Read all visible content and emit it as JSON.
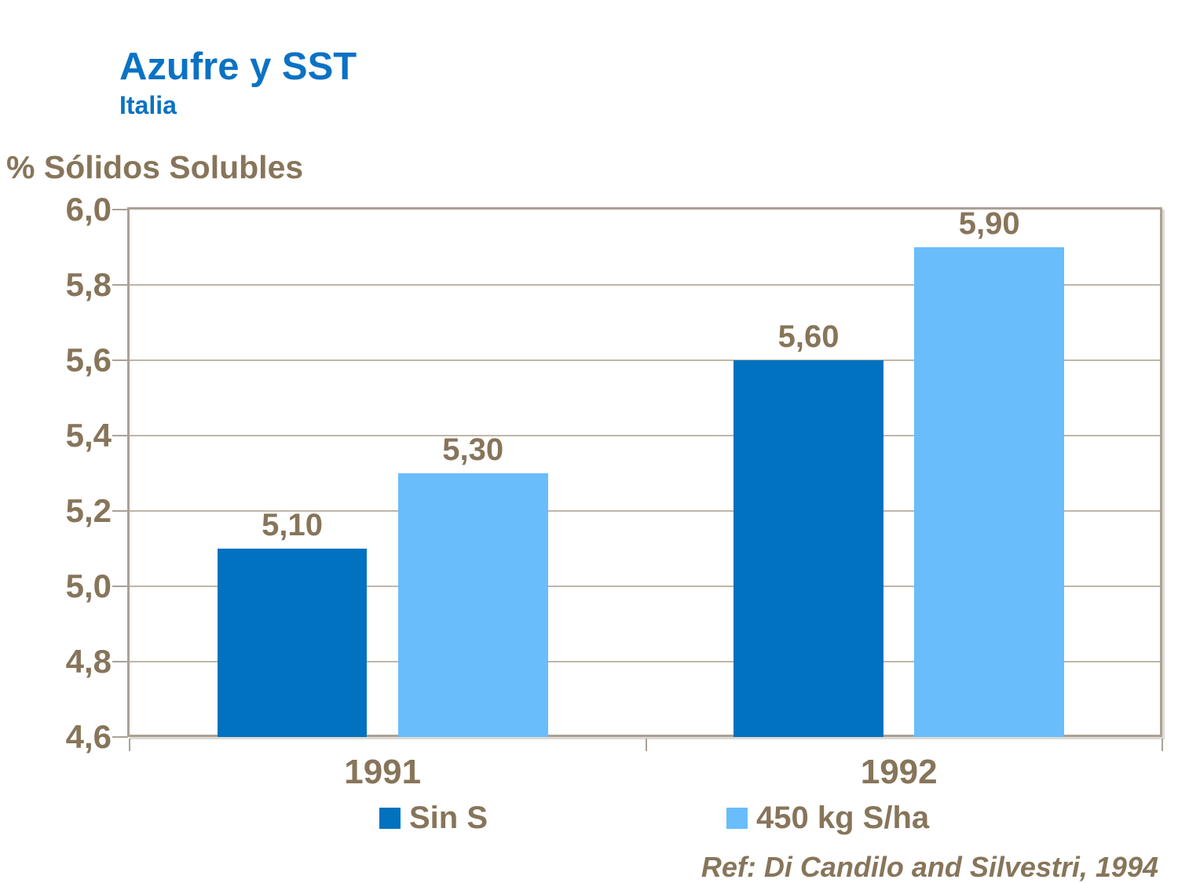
{
  "header": {
    "title": "Azufre y SST",
    "subtitle": "Italia"
  },
  "chart_data": {
    "type": "bar",
    "title": "Azufre y SST",
    "subtitle": "Italia",
    "ylabel": "% Sólidos Solubles",
    "xlabel": "",
    "categories": [
      "1991",
      "1992"
    ],
    "series": [
      {
        "name": "Sin S",
        "color": "#0072BF",
        "values": [
          5.1,
          5.6
        ]
      },
      {
        "name": "450 kg S/ha",
        "color": "#69BDFB",
        "values": [
          5.3,
          5.9
        ]
      }
    ],
    "value_labels": {
      "Sin S": [
        "5,10",
        "5,60"
      ],
      "450 kg S/ha": [
        "5,30",
        "5,90"
      ]
    },
    "ylim": [
      4.6,
      6.0
    ],
    "ytick_step": 0.2,
    "ytick_labels": [
      "6,0",
      "5,8",
      "5,6",
      "5,4",
      "5,2",
      "5,0",
      "4,8",
      "4,6"
    ],
    "decimal_separator": ",",
    "grid": true,
    "legend_position": "bottom",
    "annotation": "Ref: Di Candilo and Silvestri, 1994"
  },
  "footer": {
    "reference": "Ref: Di Candilo and Silvestri, 1994"
  },
  "colors": {
    "title_blue": "#0B72C4",
    "text_brown": "#87755A",
    "bar_dark_blue": "#0072BF",
    "bar_light_blue": "#69BDFB",
    "frame_tan": "#ABA195",
    "grid_tan": "#BFB6A8"
  }
}
